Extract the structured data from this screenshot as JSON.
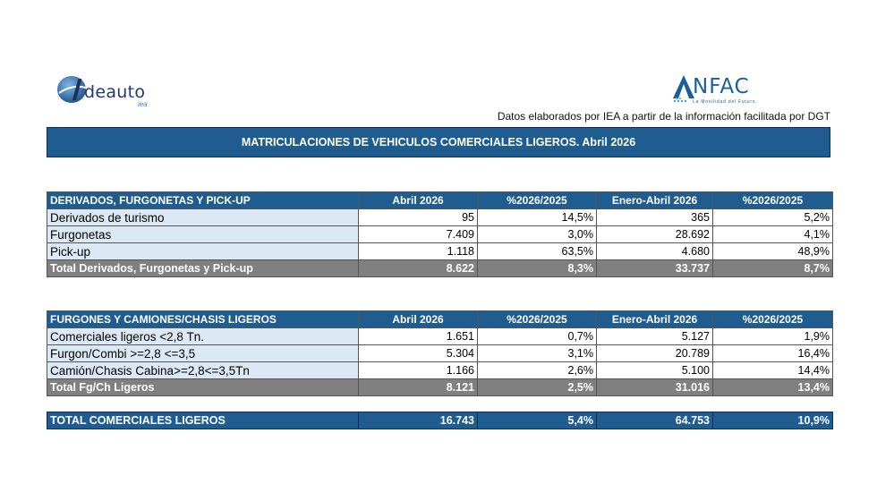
{
  "logos": {
    "ideauto": {
      "text": "deauto",
      "sub": "iea"
    },
    "anfac": {
      "text": "NFAC",
      "tagline": "La Movilidad del Futuro"
    }
  },
  "source_note": "Datos elaborados por IEA a partir de la información facilitada por DGT",
  "title": "MATRICULACIONES DE VEHICULOS COMERCIALES LIGEROS. Abril 2026",
  "columns": [
    "Abril 2026",
    "%2026/2025",
    "Enero-Abril 2026",
    "%2026/2025"
  ],
  "table1": {
    "header": "DERIVADOS, FURGONETAS Y PICK-UP",
    "rows": [
      {
        "label": "Derivados de turismo",
        "v1": "95",
        "v2": "14,5%",
        "v3": "365",
        "v4": "5,2%"
      },
      {
        "label": "Furgonetas",
        "v1": "7.409",
        "v2": "3,0%",
        "v3": "28.692",
        "v4": "4,1%"
      },
      {
        "label": "Pick-up",
        "v1": "1.118",
        "v2": "63,5%",
        "v3": "4.680",
        "v4": "48,9%"
      }
    ],
    "total": {
      "label": "Total Derivados, Furgonetas y Pick-up",
      "v1": "8.622",
      "v2": "8,3%",
      "v3": "33.737",
      "v4": "8,7%"
    }
  },
  "table2": {
    "header": "FURGONES Y CAMIONES/CHASIS LIGEROS",
    "rows": [
      {
        "label": "Comerciales ligeros <2,8 Tn.",
        "v1": "1.651",
        "v2": "0,7%",
        "v3": "5.127",
        "v4": "1,9%"
      },
      {
        "label": "Furgon/Combi >=2,8 <=3,5",
        "v1": "5.304",
        "v2": "3,1%",
        "v3": "20.789",
        "v4": "16,4%"
      },
      {
        "label": "Camión/Chasis Cabina>=2,8<=3,5Tn",
        "v1": "1.166",
        "v2": "2,6%",
        "v3": "5.100",
        "v4": "14,4%"
      }
    ],
    "total": {
      "label": "Total Fg/Ch Ligeros",
      "v1": "8.121",
      "v2": "2,5%",
      "v3": "31.016",
      "v4": "13,4%"
    }
  },
  "grand_total": {
    "label": "TOTAL COMERCIALES LIGEROS",
    "v1": "16.743",
    "v2": "5,4%",
    "v3": "64.753",
    "v4": "10,9%"
  }
}
